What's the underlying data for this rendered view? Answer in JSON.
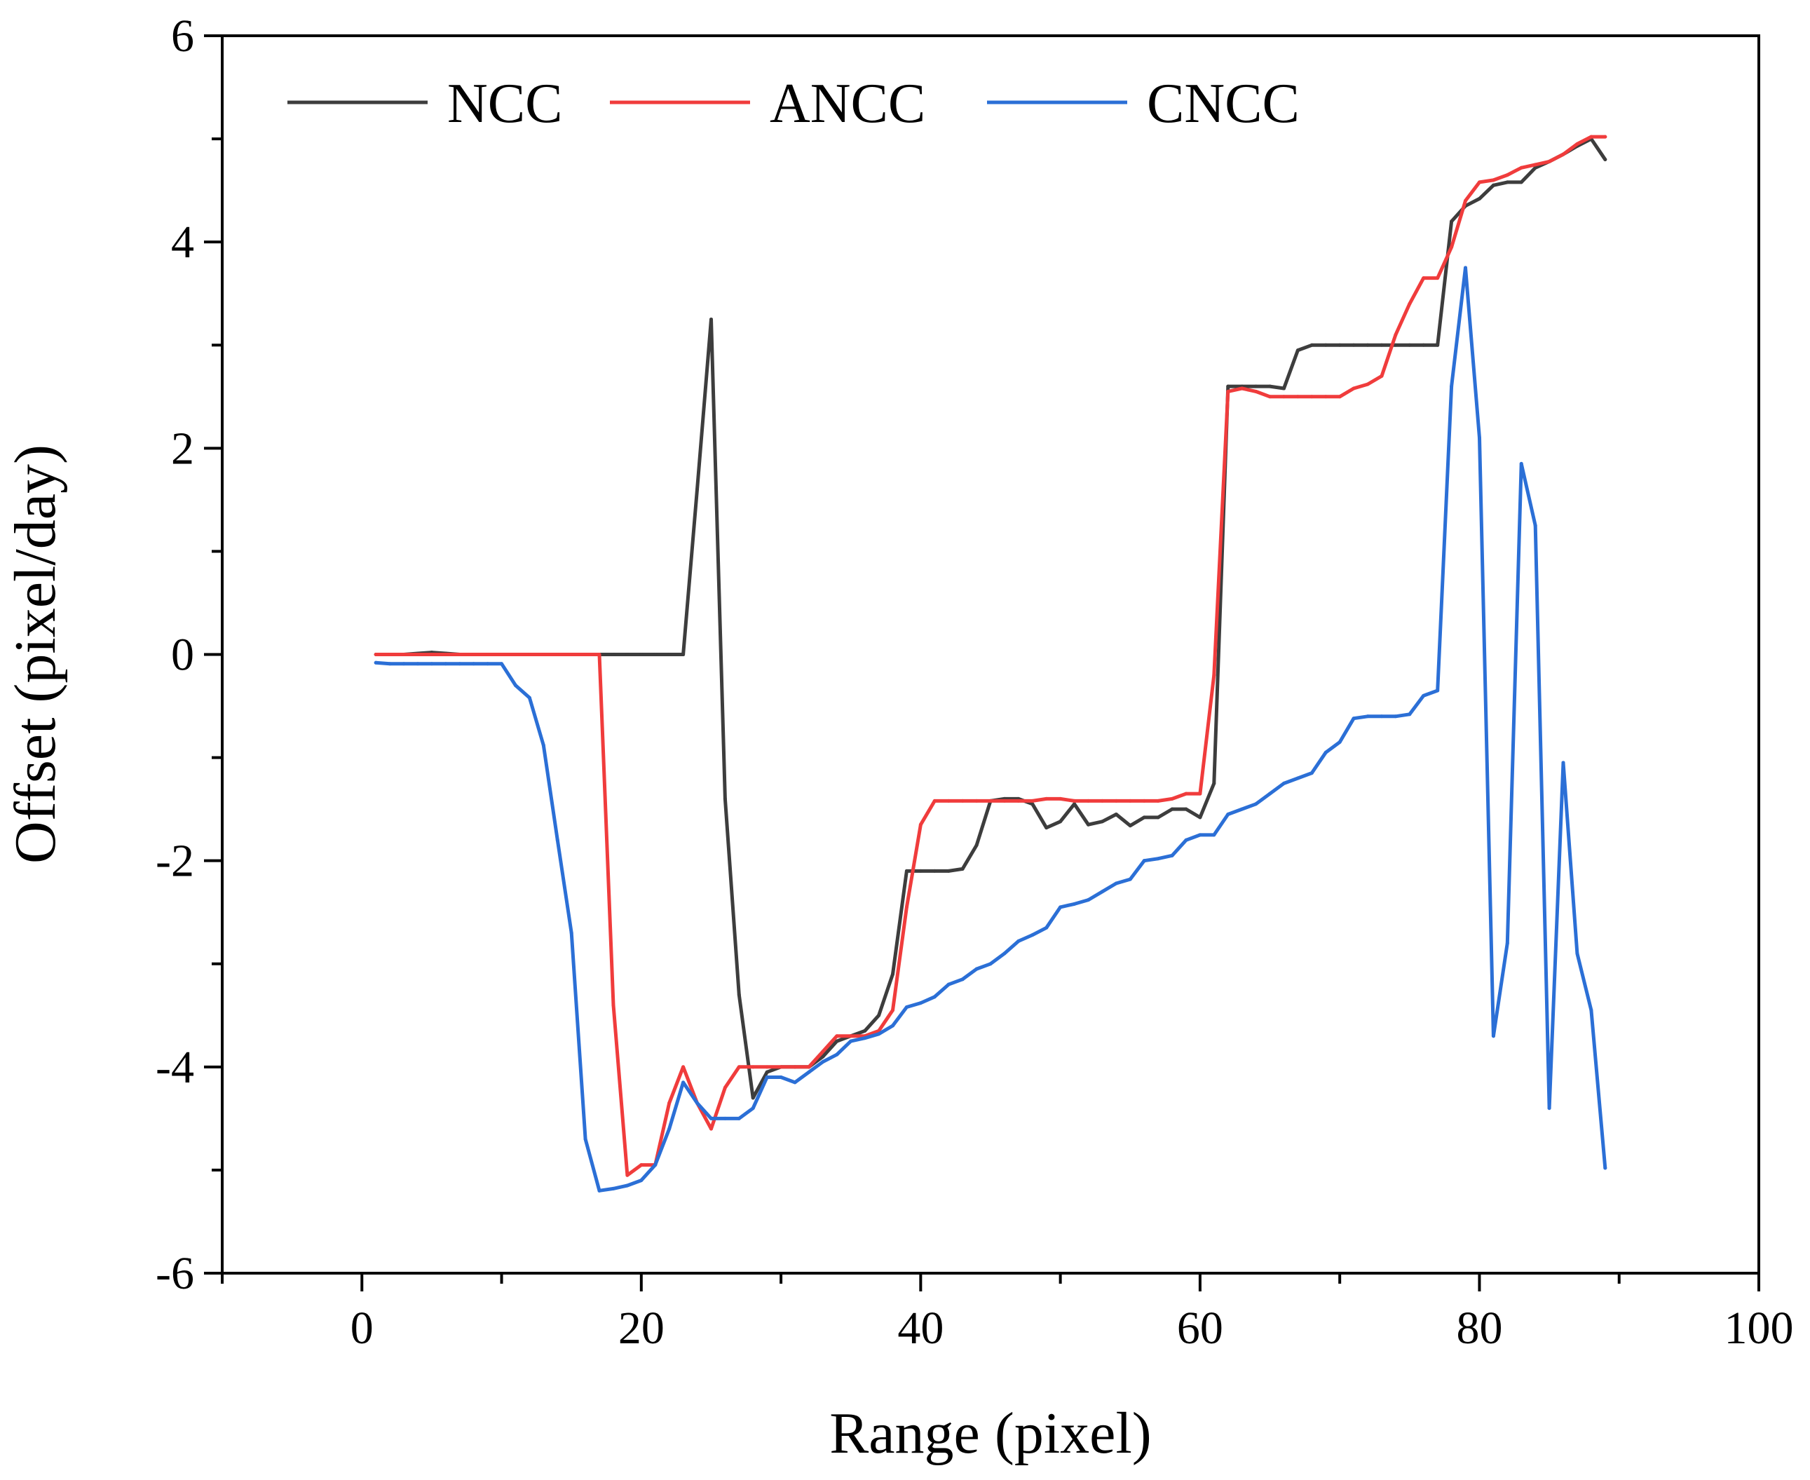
{
  "chart_data": {
    "type": "line",
    "title": "",
    "xlabel": "Range (pixel)",
    "ylabel": "Offset (pixel/day)",
    "xlim": [
      -10,
      100
    ],
    "ylim": [
      -6,
      6
    ],
    "xticks": [
      0,
      20,
      40,
      60,
      80,
      100
    ],
    "xtick_labels": [
      "0",
      "20",
      "40",
      "60",
      "80",
      "100"
    ],
    "yticks": [
      -6,
      -4,
      -2,
      0,
      2,
      4,
      6
    ],
    "ytick_labels": [
      "-6",
      "-4",
      "-2",
      "0",
      "2",
      "4",
      "6"
    ],
    "grid": false,
    "legend": "top-left, horizontal",
    "x": [
      1,
      2,
      3,
      4,
      5,
      6,
      7,
      8,
      9,
      10,
      11,
      12,
      13,
      14,
      15,
      16,
      17,
      18,
      19,
      20,
      21,
      22,
      23,
      24,
      25,
      26,
      27,
      28,
      29,
      30,
      31,
      32,
      33,
      34,
      35,
      36,
      37,
      38,
      39,
      40,
      41,
      42,
      43,
      44,
      45,
      46,
      47,
      48,
      49,
      50,
      51,
      52,
      53,
      54,
      55,
      56,
      57,
      58,
      59,
      60,
      61,
      62,
      63,
      64,
      65,
      66,
      67,
      68,
      69,
      70,
      71,
      72,
      73,
      74,
      75,
      76,
      77,
      78,
      79,
      80,
      81,
      82,
      83,
      84,
      85,
      86,
      87,
      88,
      89
    ],
    "series": [
      {
        "name": "NCC",
        "color": "#3d3d3d",
        "values": [
          0,
          0,
          0,
          0.01,
          0.02,
          0.01,
          0,
          0,
          0,
          0,
          0,
          0,
          0,
          0,
          0,
          0,
          0,
          0,
          0,
          0,
          0,
          0,
          0,
          1.6,
          3.25,
          -1.4,
          -3.3,
          -4.3,
          -4.05,
          -4,
          -4,
          -4,
          -3.9,
          -3.75,
          -3.7,
          -3.65,
          -3.5,
          -3.1,
          -2.1,
          -2.1,
          -2.1,
          -2.1,
          -2.08,
          -1.85,
          -1.42,
          -1.4,
          -1.4,
          -1.45,
          -1.68,
          -1.62,
          -1.45,
          -1.65,
          -1.62,
          -1.55,
          -1.66,
          -1.58,
          -1.58,
          -1.5,
          -1.5,
          -1.58,
          -1.25,
          2.6,
          2.6,
          2.6,
          2.6,
          2.58,
          2.95,
          3.0,
          3.0,
          3.0,
          3.0,
          3.0,
          3.0,
          3.0,
          3.0,
          3.0,
          3.0,
          4.2,
          4.35,
          4.42,
          4.55,
          4.58,
          4.58,
          4.72,
          4.78,
          4.85,
          4.93,
          5.0,
          4.8
        ]
      },
      {
        "name": "ANCC",
        "color": "#f03c3c",
        "values": [
          0,
          0,
          0,
          0,
          0,
          0,
          0,
          0,
          0,
          0,
          0,
          0,
          0,
          0,
          0,
          0,
          0,
          -3.4,
          -5.05,
          -4.95,
          -4.95,
          -4.35,
          -4.0,
          -4.35,
          -4.6,
          -4.2,
          -4.0,
          -4.0,
          -4.0,
          -4.0,
          -4.0,
          -4.0,
          -3.85,
          -3.7,
          -3.7,
          -3.7,
          -3.65,
          -3.45,
          -2.45,
          -1.65,
          -1.42,
          -1.42,
          -1.42,
          -1.42,
          -1.42,
          -1.42,
          -1.42,
          -1.42,
          -1.4,
          -1.4,
          -1.42,
          -1.42,
          -1.42,
          -1.42,
          -1.42,
          -1.42,
          -1.42,
          -1.4,
          -1.35,
          -1.35,
          -0.2,
          2.55,
          2.58,
          2.55,
          2.5,
          2.5,
          2.5,
          2.5,
          2.5,
          2.5,
          2.58,
          2.62,
          2.7,
          3.1,
          3.4,
          3.65,
          3.65,
          3.95,
          4.4,
          4.58,
          4.6,
          4.65,
          4.72,
          4.75,
          4.78,
          4.85,
          4.95,
          5.02,
          5.02
        ]
      },
      {
        "name": "CNCC",
        "color": "#2b6fd6",
        "values": [
          -0.08,
          -0.09,
          -0.09,
          -0.09,
          -0.09,
          -0.09,
          -0.09,
          -0.09,
          -0.09,
          -0.09,
          -0.3,
          -0.42,
          -0.88,
          -1.8,
          -2.7,
          -4.7,
          -5.2,
          -5.18,
          -5.15,
          -5.1,
          -4.95,
          -4.6,
          -4.15,
          -4.35,
          -4.5,
          -4.5,
          -4.5,
          -4.4,
          -4.1,
          -4.1,
          -4.15,
          -4.05,
          -3.95,
          -3.88,
          -3.75,
          -3.72,
          -3.68,
          -3.6,
          -3.42,
          -3.38,
          -3.32,
          -3.2,
          -3.15,
          -3.05,
          -3.0,
          -2.9,
          -2.78,
          -2.72,
          -2.65,
          -2.45,
          -2.42,
          -2.38,
          -2.3,
          -2.22,
          -2.18,
          -2.0,
          -1.98,
          -1.95,
          -1.8,
          -1.75,
          -1.75,
          -1.55,
          -1.5,
          -1.45,
          -1.35,
          -1.25,
          -1.2,
          -1.15,
          -0.95,
          -0.85,
          -0.62,
          -0.6,
          -0.6,
          -0.6,
          -0.58,
          -0.4,
          -0.35,
          2.6,
          3.75,
          2.1,
          -3.7,
          -2.8,
          1.85,
          1.25,
          -4.4,
          -1.05,
          -2.9,
          -3.45,
          -4.98
        ]
      }
    ]
  }
}
